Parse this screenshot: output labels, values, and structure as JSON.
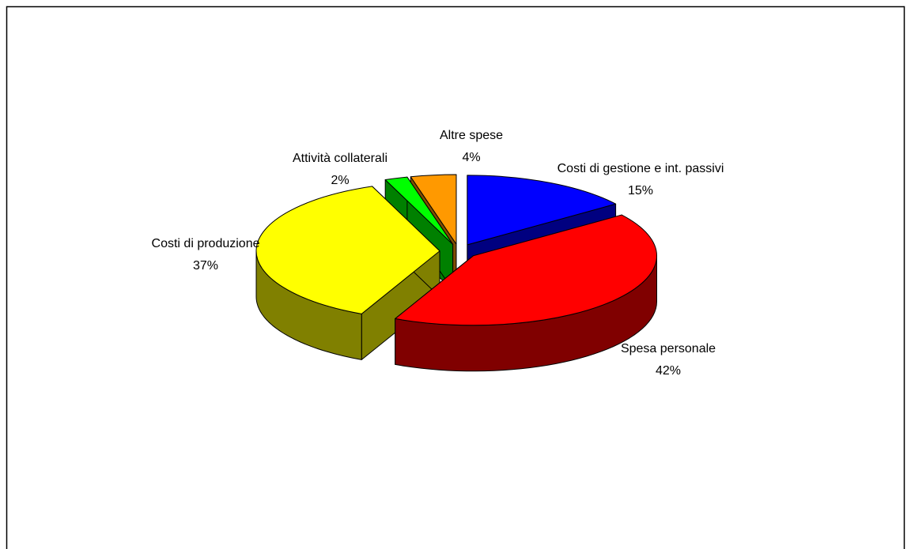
{
  "chart_data": {
    "type": "pie3d",
    "categories": [
      "Costi di gestione e int. passivi",
      "Spesa personale",
      "Costi di produzione",
      "Attività collaterali",
      "Altre spese"
    ],
    "values": [
      15,
      42,
      37,
      2,
      4
    ],
    "value_labels": [
      "15%",
      "42%",
      "37%",
      "2%",
      "4%"
    ],
    "colors": [
      "#0000ff",
      "#ff0000",
      "#ffff00",
      "#00ff00",
      "#ff9900"
    ]
  }
}
